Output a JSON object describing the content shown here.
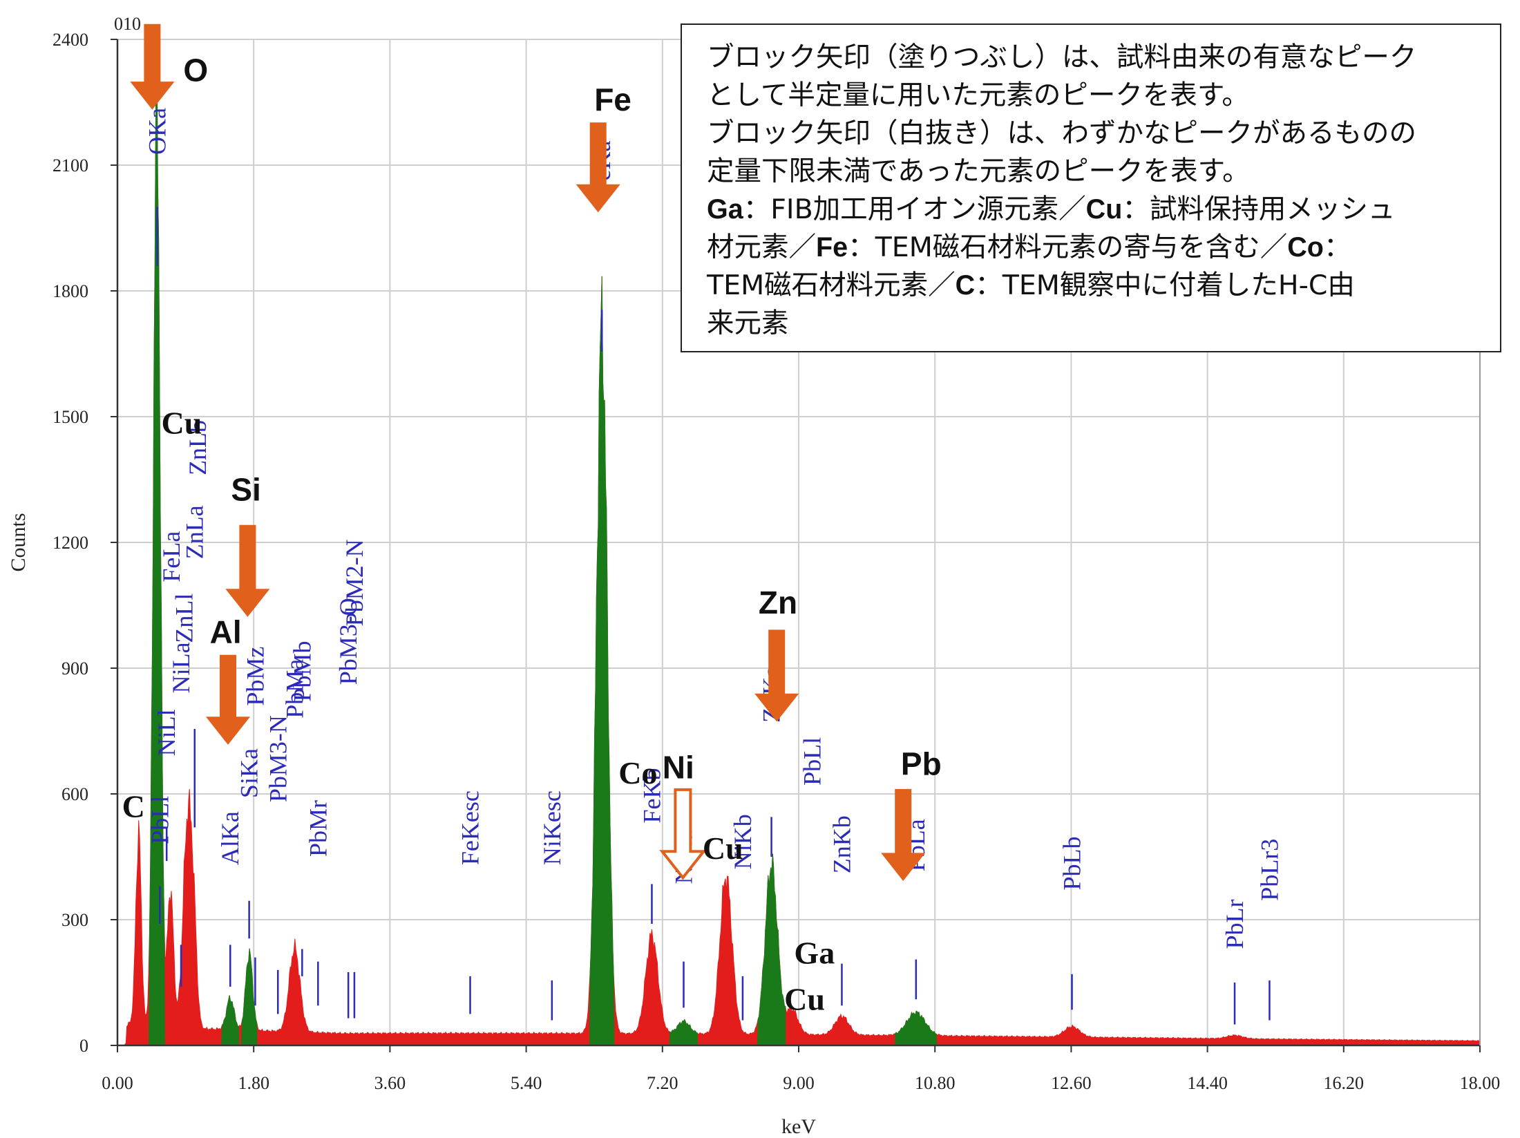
{
  "chart_data": {
    "type": "area",
    "xlabel": "keV",
    "ylabel": "Counts",
    "xlim": [
      0,
      18
    ],
    "ylim": [
      0,
      2400
    ],
    "x_ticks": [
      "0.00",
      "1.80",
      "3.60",
      "5.40",
      "7.20",
      "9.00",
      "10.80",
      "12.60",
      "14.40",
      "16.20",
      "18.00"
    ],
    "y_ticks": [
      "0",
      "300",
      "600",
      "900",
      "1200",
      "1500",
      "1800",
      "2100",
      "2400"
    ],
    "corner_label": "010",
    "grid": true,
    "colors": {
      "spectrum": "#e31c1c",
      "roi": "#1a7a1a",
      "line_marker": "#2b2bb8",
      "arrow": "#e0601c"
    },
    "background_level": 25,
    "peaks": [
      {
        "x": 0.28,
        "height": 460,
        "width": 0.035,
        "roi": false
      },
      {
        "x": 0.52,
        "height": 2190,
        "width": 0.045,
        "roi": true
      },
      {
        "x": 0.7,
        "height": 330,
        "width": 0.04,
        "roi": false
      },
      {
        "x": 0.93,
        "height": 505,
        "width": 0.06,
        "roi": false
      },
      {
        "x": 1.01,
        "height": 150,
        "width": 0.04,
        "roi": false
      },
      {
        "x": 1.49,
        "height": 75,
        "width": 0.05,
        "roi": true
      },
      {
        "x": 1.74,
        "height": 185,
        "width": 0.045,
        "roi": true
      },
      {
        "x": 2.34,
        "height": 200,
        "width": 0.07,
        "roi": false
      },
      {
        "x": 6.4,
        "height": 1690,
        "width": 0.07,
        "roi": true
      },
      {
        "x": 7.06,
        "height": 235,
        "width": 0.08,
        "roi": false
      },
      {
        "x": 7.48,
        "height": 30,
        "width": 0.08,
        "roi": true
      },
      {
        "x": 8.04,
        "height": 375,
        "width": 0.08,
        "roi": false
      },
      {
        "x": 8.64,
        "height": 405,
        "width": 0.08,
        "roi": true
      },
      {
        "x": 8.91,
        "height": 60,
        "width": 0.08,
        "roi": false
      },
      {
        "x": 9.57,
        "height": 45,
        "width": 0.09,
        "roi": false
      },
      {
        "x": 10.55,
        "height": 55,
        "width": 0.12,
        "roi": true
      },
      {
        "x": 12.61,
        "height": 25,
        "width": 0.1,
        "roi": false
      },
      {
        "x": 14.76,
        "height": 8,
        "width": 0.1,
        "roi": false
      }
    ],
    "line_markers": [
      {
        "label": "OKa",
        "x": 0.525,
        "label_level": 2125,
        "marker_top": 2000,
        "marker_bottom": 1860
      },
      {
        "label": "PbLl",
        "x": 0.56,
        "label_level": 480,
        "marker_top": 380,
        "marker_bottom": 290
      },
      {
        "label": "NiLl",
        "x": 0.65,
        "label_level": 690,
        "marker_top": 520,
        "marker_bottom": 440
      },
      {
        "label": "FeLa",
        "x": 0.71,
        "label_level": 1105,
        "marker_top": 0,
        "marker_bottom": 0
      },
      {
        "label": "NiLa",
        "x": 0.84,
        "label_level": 840,
        "marker_top": 240,
        "marker_bottom": 140
      },
      {
        "label": "ZnLl",
        "x": 0.88,
        "label_level": 960,
        "marker_top": 0,
        "marker_bottom": 0
      },
      {
        "label": "ZnLa",
        "x": 1.02,
        "label_level": 1160,
        "marker_top": 755,
        "marker_bottom": 520
      },
      {
        "label": "ZnLb",
        "x": 1.06,
        "label_level": 1360,
        "marker_top": 0,
        "marker_bottom": 0
      },
      {
        "label": "AlKa",
        "x": 1.49,
        "label_level": 430,
        "marker_top": 240,
        "marker_bottom": 140
      },
      {
        "label": "SiKa",
        "x": 1.74,
        "label_level": 590,
        "marker_top": 345,
        "marker_bottom": 255
      },
      {
        "label": "PbMz",
        "x": 1.82,
        "label_level": 810,
        "marker_top": 210,
        "marker_bottom": 95
      },
      {
        "label": "PbM3-N",
        "x": 2.12,
        "label_level": 580,
        "marker_top": 180,
        "marker_bottom": 75
      },
      {
        "label": "PbMa",
        "x": 2.34,
        "label_level": 780,
        "marker_top": 0,
        "marker_bottom": 0
      },
      {
        "label": "PbMb",
        "x": 2.44,
        "label_level": 820,
        "marker_top": 230,
        "marker_bottom": 165
      },
      {
        "label": "PbMr",
        "x": 2.65,
        "label_level": 450,
        "marker_top": 200,
        "marker_bottom": 95
      },
      {
        "label": "PbM3-O",
        "x": 3.05,
        "label_level": 860,
        "marker_top": 175,
        "marker_bottom": 65
      },
      {
        "label": "PbM2-N",
        "x": 3.13,
        "label_level": 1000,
        "marker_top": 175,
        "marker_bottom": 65
      },
      {
        "label": "FeKesc",
        "x": 4.66,
        "label_level": 430,
        "marker_top": 165,
        "marker_bottom": 75
      },
      {
        "label": "NiKesc",
        "x": 5.74,
        "label_level": 430,
        "marker_top": 155,
        "marker_bottom": 60
      },
      {
        "label": "FeKa",
        "x": 6.4,
        "label_level": 2030,
        "marker_top": 1755,
        "marker_bottom": 1655
      },
      {
        "label": "FeKb",
        "x": 7.06,
        "label_level": 530,
        "marker_top": 385,
        "marker_bottom": 290
      },
      {
        "label": "NiKa",
        "x": 7.48,
        "label_level": 385,
        "marker_top": 200,
        "marker_bottom": 90
      },
      {
        "label": "NiKb",
        "x": 8.26,
        "label_level": 420,
        "marker_top": 165,
        "marker_bottom": 60
      },
      {
        "label": "ZnKa",
        "x": 8.64,
        "label_level": 770,
        "marker_top": 545,
        "marker_bottom": 450
      },
      {
        "label": "PbLl",
        "x": 9.18,
        "label_level": 620,
        "marker_top": 0,
        "marker_bottom": 0
      },
      {
        "label": "ZnKb",
        "x": 9.57,
        "label_level": 410,
        "marker_top": 195,
        "marker_bottom": 95
      },
      {
        "label": "PbLa",
        "x": 10.55,
        "label_level": 415,
        "marker_top": 205,
        "marker_bottom": 110
      },
      {
        "label": "PbLb",
        "x": 12.61,
        "label_level": 370,
        "marker_top": 170,
        "marker_bottom": 85
      },
      {
        "label": "PbLr",
        "x": 14.76,
        "label_level": 230,
        "marker_top": 150,
        "marker_bottom": 50
      },
      {
        "label": "PbLr3",
        "x": 15.22,
        "label_level": 345,
        "marker_top": 155,
        "marker_bottom": 60
      }
    ],
    "element_labels": [
      {
        "label": "O",
        "x": 0.87,
        "y": 2300,
        "font": "sans"
      },
      {
        "label": "Fe",
        "x": 6.3,
        "y": 2230,
        "font": "sans"
      },
      {
        "label": "Cu",
        "x": 0.58,
        "y": 1460,
        "font": "serif"
      },
      {
        "label": "Si",
        "x": 1.5,
        "y": 1300,
        "font": "sans"
      },
      {
        "label": "Al",
        "x": 1.22,
        "y": 960,
        "font": "sans"
      },
      {
        "label": "Zn",
        "x": 8.47,
        "y": 1030,
        "font": "sans"
      },
      {
        "label": "Co",
        "x": 6.62,
        "y": 625,
        "font": "serif"
      },
      {
        "label": "Ni",
        "x": 7.2,
        "y": 637,
        "font": "sans"
      },
      {
        "label": "Cu",
        "x": 7.73,
        "y": 445,
        "font": "serif"
      },
      {
        "label": "Pb",
        "x": 10.35,
        "y": 645,
        "font": "sans"
      },
      {
        "label": "C",
        "x": 0.06,
        "y": 545,
        "font": "serif"
      },
      {
        "label": "Ga",
        "x": 8.94,
        "y": 195,
        "font": "serif"
      },
      {
        "label": "Cu",
        "x": 8.81,
        "y": 85,
        "font": "serif"
      }
    ],
    "arrows": [
      {
        "x": 0.46,
        "top": 2435,
        "tip": 2235,
        "filled": true
      },
      {
        "x": 6.35,
        "top": 2200,
        "tip": 1990,
        "filled": true
      },
      {
        "x": 1.72,
        "top": 1240,
        "tip": 1025,
        "filled": true
      },
      {
        "x": 1.46,
        "top": 930,
        "tip": 720,
        "filled": true
      },
      {
        "x": 8.71,
        "top": 990,
        "tip": 775,
        "filled": true
      },
      {
        "x": 10.38,
        "top": 610,
        "tip": 395,
        "filled": true
      },
      {
        "x": 7.47,
        "top": 610,
        "tip": 400,
        "filled": false
      }
    ]
  },
  "note": {
    "line1": "ブロック矢印（塗りつぶし）は、試料由来の有意なピーク",
    "line2": "として半定量に用いた元素のピークを表す。",
    "line3": "ブロック矢印（白抜き）は、わずかなピークがあるものの",
    "line4": "定量下限未満であった元素のピークを表す。",
    "ga_sym": "Ga",
    "ga_text": "：FIB加工用イオン源元素／",
    "cu_sym": "Cu",
    "cu_text": "：試料保持用メッシュ",
    "cu_text2": "材元素／",
    "fe_sym": "Fe",
    "fe_text": "：TEM磁石材料元素の寄与を含む／",
    "co_sym": "Co",
    "co_text": "：",
    "co_text2": "TEM磁石材料元素／",
    "c_sym": "C",
    "c_text": "：TEM観察中に付着したH-C由",
    "c_text2": "来元素"
  }
}
